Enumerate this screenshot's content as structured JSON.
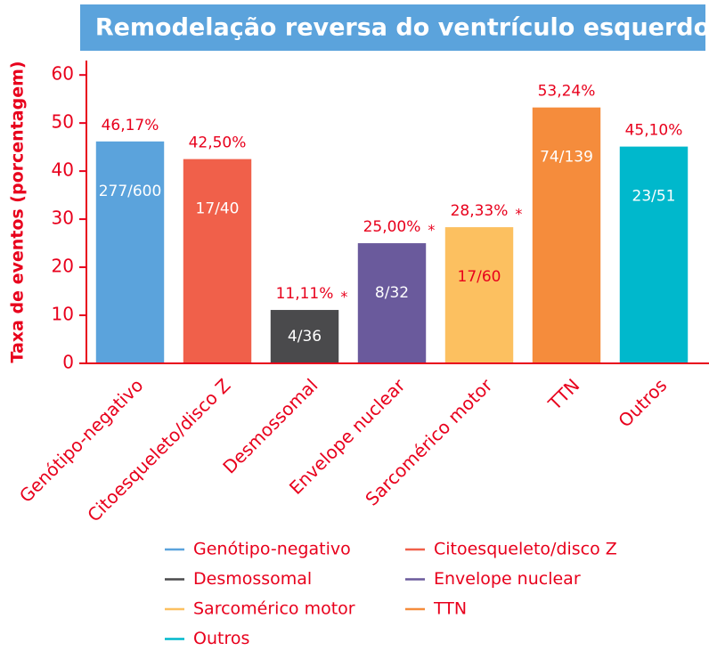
{
  "chart_data": {
    "type": "bar",
    "title": "Remodelação reversa do ventrículo esquerdo",
    "y_label": "Taxa de eventos (porcentagem)",
    "categories": [
      "Genótipo-negativo",
      "Citoesqueleto/disco Z",
      "Desmossomal",
      "Envelope nuclear",
      "Sarcomérico motor",
      "TTN",
      "Outros"
    ],
    "values": [
      46.17,
      42.5,
      11.11,
      25.0,
      28.33,
      53.24,
      45.1
    ],
    "value_labels": [
      "46,17%",
      "42,50%",
      "11,11%",
      "25,00%",
      "28,33%",
      "53,24%",
      "45,10%"
    ],
    "counts": [
      "277/600",
      "17/40",
      "4/36",
      "8/32",
      "17/60",
      "74/139",
      "23/51"
    ],
    "markers": [
      null,
      null,
      "*",
      "*",
      "*",
      null,
      null
    ],
    "colors": [
      "#5ba3dc",
      "#f0604a",
      "#4a4a4c",
      "#6a5a9c",
      "#fcc060",
      "#f58c3c",
      "#00b8cc"
    ],
    "count_colors": [
      "#ffffff",
      "#ffffff",
      "#ffffff",
      "#ffffff",
      "#e8001c",
      "#ffffff",
      "#ffffff"
    ],
    "ylim": [
      0,
      63
    ],
    "yticks": [
      0,
      10,
      20,
      30,
      40,
      50,
      60
    ]
  }
}
